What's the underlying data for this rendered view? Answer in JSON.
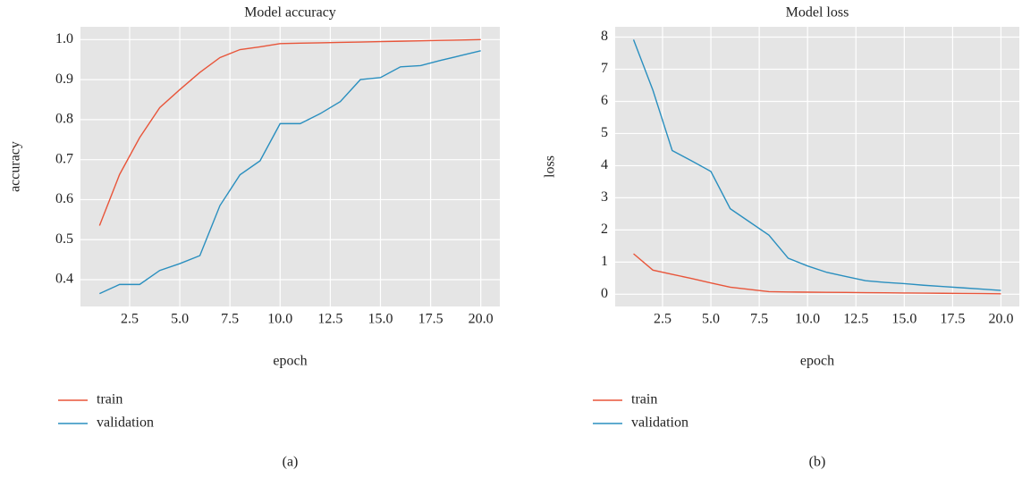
{
  "chart_data": [
    {
      "type": "line",
      "title": "Model accuracy",
      "xlabel": "epoch",
      "ylabel": "accuracy",
      "caption": "(a)",
      "x": [
        1,
        2,
        3,
        4,
        5,
        6,
        7,
        8,
        9,
        10,
        11,
        12,
        13,
        14,
        15,
        16,
        17,
        18,
        19,
        20
      ],
      "series": [
        {
          "name": "train",
          "color": "#e8553a",
          "values": [
            0.535,
            0.663,
            0.755,
            0.83,
            0.875,
            0.918,
            0.955,
            0.975,
            0.982,
            0.99,
            0.991,
            0.992,
            0.993,
            0.994,
            0.995,
            0.996,
            0.997,
            0.998,
            0.999,
            1.0
          ]
        },
        {
          "name": "validation",
          "color": "#2a8fbf",
          "values": [
            0.365,
            0.388,
            0.388,
            0.423,
            0.44,
            0.46,
            0.585,
            0.662,
            0.697,
            0.79,
            0.79,
            0.815,
            0.845,
            0.9,
            0.905,
            0.932,
            0.935,
            0.948,
            0.96,
            0.972
          ]
        }
      ],
      "xlim": [
        0.05,
        20.95
      ],
      "ylim": [
        0.333,
        1.032
      ],
      "xticks": [
        2.5,
        {
          "value": 5,
          "label": "5.0"
        },
        7.5,
        {
          "value": 10,
          "label": "10.0"
        },
        12.5,
        {
          "value": 15,
          "label": "15.0"
        },
        17.5,
        {
          "value": 20,
          "label": "20.0"
        }
      ],
      "yticks": [
        0.4,
        0.5,
        0.6,
        0.7,
        0.8,
        0.9,
        {
          "value": 1,
          "label": "1.0"
        }
      ],
      "grid": true
    },
    {
      "type": "line",
      "title": "Model loss",
      "xlabel": "epoch",
      "ylabel": "loss",
      "caption": "(b)",
      "x": [
        1,
        2,
        3,
        4,
        5,
        6,
        7,
        8,
        9,
        10,
        11,
        12,
        13,
        14,
        15,
        16,
        17,
        18,
        19,
        20
      ],
      "series": [
        {
          "name": "train",
          "color": "#e8553a",
          "values": [
            1.26,
            0.75,
            0.62,
            0.49,
            0.35,
            0.22,
            0.15,
            0.08,
            0.07,
            0.065,
            0.06,
            0.055,
            0.05,
            0.045,
            0.04,
            0.035,
            0.03,
            0.025,
            0.02,
            0.015
          ]
        },
        {
          "name": "validation",
          "color": "#2a8fbf",
          "values": [
            7.92,
            6.35,
            4.47,
            4.15,
            3.82,
            2.66,
            2.25,
            1.84,
            1.12,
            0.88,
            0.68,
            0.55,
            0.42,
            0.37,
            0.33,
            0.28,
            0.24,
            0.2,
            0.16,
            0.12
          ]
        }
      ],
      "xlim": [
        0.05,
        20.95
      ],
      "ylim": [
        -0.38,
        8.32
      ],
      "xticks": [
        2.5,
        {
          "value": 5,
          "label": "5.0"
        },
        7.5,
        {
          "value": 10,
          "label": "10.0"
        },
        12.5,
        {
          "value": 15,
          "label": "15.0"
        },
        17.5,
        {
          "value": 20,
          "label": "20.0"
        }
      ],
      "yticks": [
        0,
        1,
        2,
        3,
        4,
        5,
        6,
        7,
        8
      ],
      "grid": true
    }
  ]
}
